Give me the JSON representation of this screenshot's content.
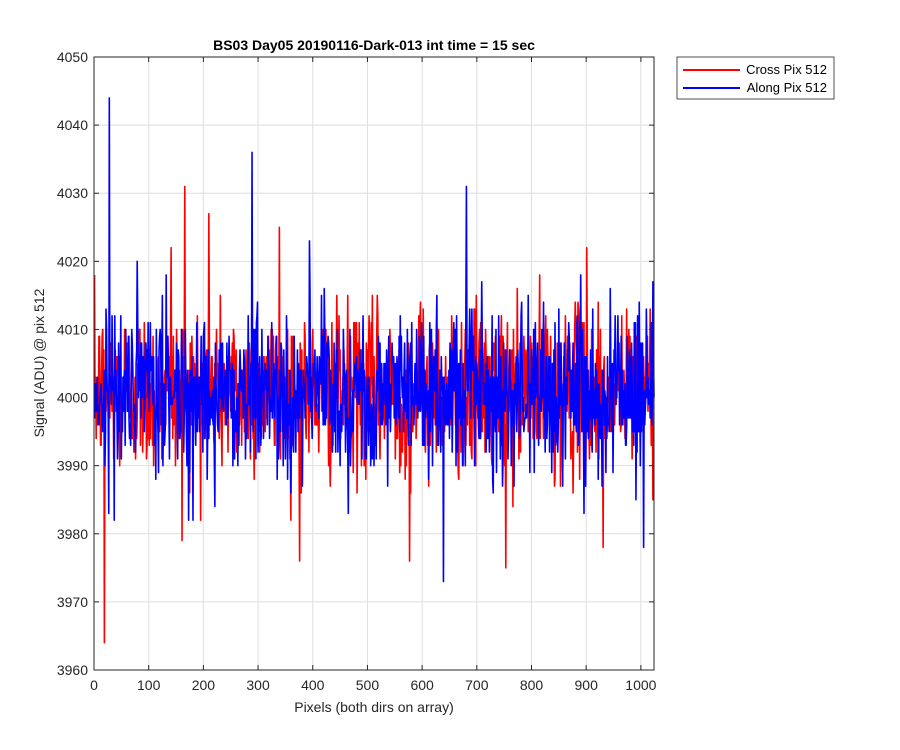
{
  "chart_data": {
    "type": "line",
    "title": "BS03 Day05 20190116-Dark-013 int time = 15 sec",
    "xlabel": "Pixels (both dirs on array)",
    "ylabel": "Signal (ADU) @ pix 512",
    "xlim": [
      0,
      1024
    ],
    "ylim": [
      3960,
      4050
    ],
    "xticks": [
      0,
      100,
      200,
      300,
      400,
      500,
      600,
      700,
      800,
      900,
      1000
    ],
    "yticks": [
      3960,
      3970,
      3980,
      3990,
      4000,
      4010,
      4020,
      4030,
      4040,
      4050
    ],
    "grid": true,
    "legend_position": "outside-top-right",
    "series": [
      {
        "name": "Cross Pix 512",
        "color": "#ff0000",
        "extremes": [
          [
            18,
            3964
          ],
          [
            165,
            4031
          ],
          [
            209,
            4027
          ],
          [
            375,
            3976
          ],
          [
            576,
            3976
          ],
          [
            752,
            3975
          ],
          [
            140,
            4022
          ],
          [
            338,
            4025
          ],
          [
            160,
            3979
          ],
          [
            900,
            4022
          ],
          [
            930,
            3978
          ]
        ]
      },
      {
        "name": "Along Pix 512",
        "color": "#0000ff",
        "extremes": [
          [
            27,
            4044
          ],
          [
            288,
            4036
          ],
          [
            680,
            4031
          ],
          [
            638,
            3973
          ],
          [
            1004,
            3978
          ],
          [
            180,
            3982
          ],
          [
            393,
            4023
          ],
          [
            895,
            3983
          ],
          [
            990,
            3985
          ]
        ]
      }
    ],
    "n_points": 1024,
    "noise": {
      "mean": 4001,
      "sd": 6
    }
  }
}
